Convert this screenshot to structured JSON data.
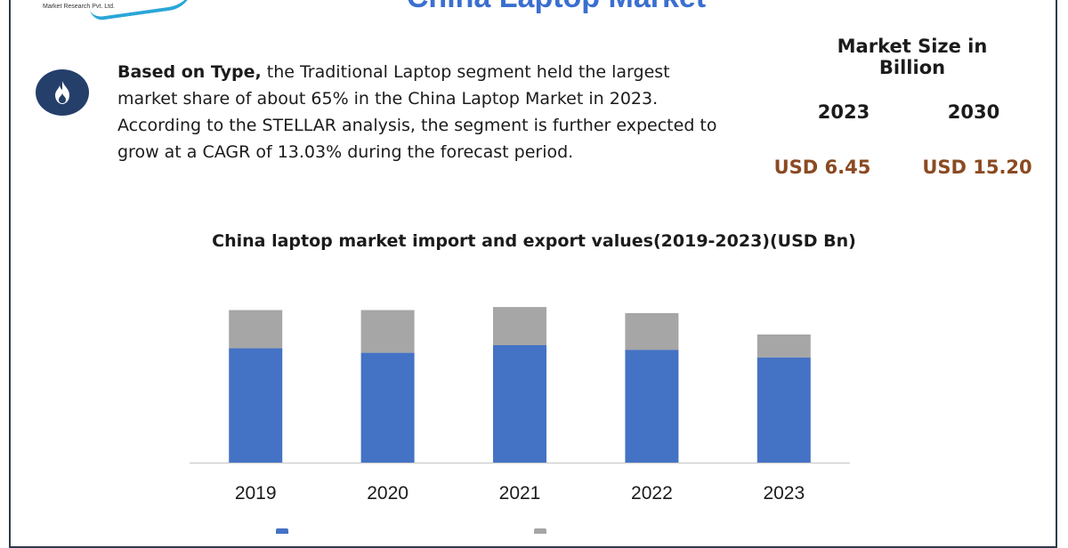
{
  "header": {
    "title": "China Laptop Market",
    "logo_text": "Market Research Pvt. Ltd."
  },
  "insight": {
    "icon": "fire-icon",
    "bold_lead": "Based on Type,",
    "text": " the Traditional Laptop segment held the largest market share of about 65% in the China Laptop Market in 2023. According to the STELLAR analysis, the segment is further expected to grow at a CAGR of 13.03% during the forecast period."
  },
  "market_size": {
    "title": "Market Size in Billion",
    "years": [
      "2023",
      "2030"
    ],
    "values": [
      "USD 6.45",
      "USD 15.20"
    ]
  },
  "colors": {
    "accent": "#3a6fcf",
    "series_a": "#4472c4",
    "series_b": "#a6a6a6",
    "value_text": "#8a4a22",
    "badge": "#253f6b"
  },
  "chart_data": {
    "type": "bar",
    "stacked": true,
    "title": "China laptop market import and export values(2019-2023)(USD Bn)",
    "categories": [
      "2019",
      "2020",
      "2021",
      "2022",
      "2023"
    ],
    "series": [
      {
        "values": [
          75,
          72,
          77,
          74,
          69
        ],
        "color": "#4472c4"
      },
      {
        "values": [
          25,
          28,
          25,
          24,
          15
        ],
        "color": "#a6a6a6"
      }
    ],
    "ylim": [
      0,
      105
    ],
    "grid": false,
    "legend": "bottom"
  }
}
